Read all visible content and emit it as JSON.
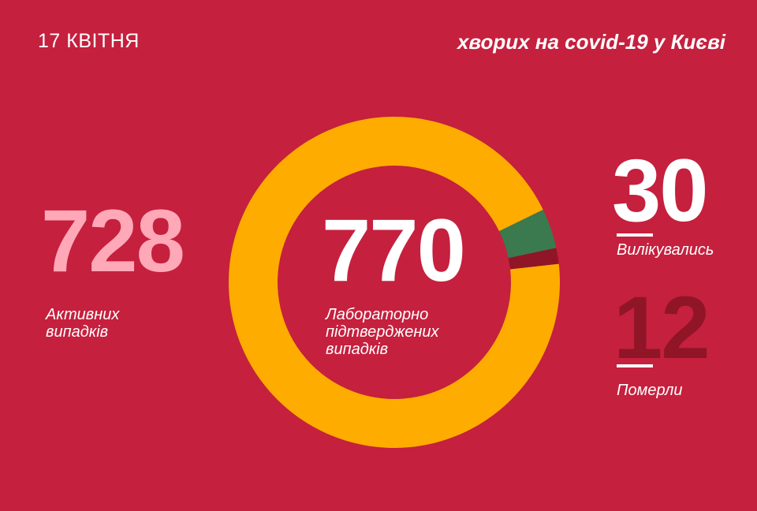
{
  "header": {
    "date": "17 КВІТНЯ",
    "subtitle": "хворих на covid-19 у Києві"
  },
  "stats": {
    "active": {
      "value": "728",
      "label_line1": "Активних",
      "label_line2": "випадків"
    },
    "total": {
      "value": "770",
      "label_line1": "Лабораторно",
      "label_line2": "підтверджених",
      "label_line3": "випадків"
    },
    "recovered": {
      "value": "30",
      "label": "Вилікувались"
    },
    "deaths": {
      "value": "12",
      "label": "Померли"
    }
  },
  "chart_data": {
    "type": "pie",
    "variant": "donut",
    "total": 770,
    "slices": [
      {
        "name": "Активних випадків",
        "value": 728,
        "color": "#ffac00"
      },
      {
        "name": "Вилікувались",
        "value": 30,
        "color": "#3a7a4e"
      },
      {
        "name": "Померли",
        "value": 12,
        "color": "#8f1527"
      }
    ]
  }
}
